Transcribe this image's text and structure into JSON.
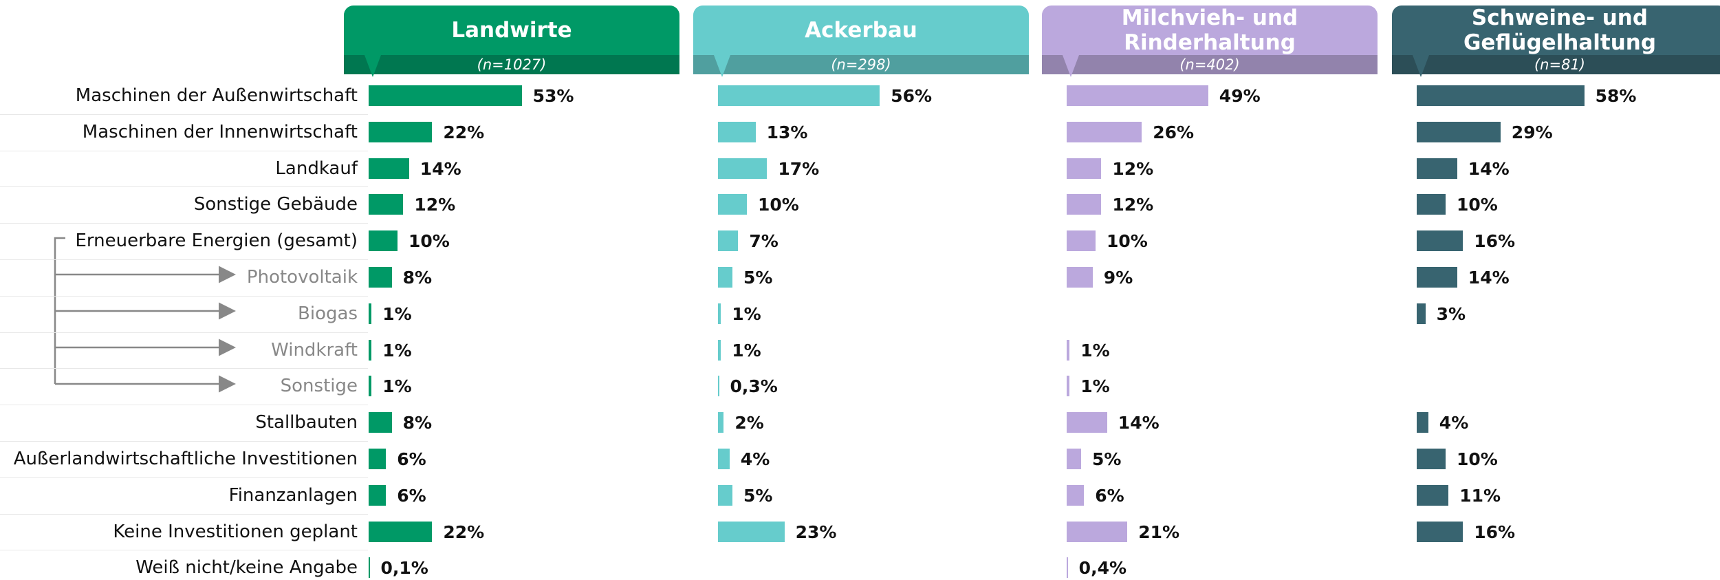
{
  "chart_data": {
    "type": "bar",
    "categories": [
      "Maschinen der Außenwirtschaft",
      "Maschinen der Innenwirtschaft",
      "Landkauf",
      "Sonstige Gebäude",
      "Erneuerbare Energien (gesamt)",
      "Photovoltaik",
      "Biogas",
      "Windkraft",
      "Sonstige",
      "Stallbauten",
      "Außerlandwirtschaftliche Investitionen",
      "Finanzanlagen",
      "Keine Investitionen geplant",
      "Weiß nicht/keine Angabe"
    ],
    "series": [
      {
        "name": "Landwirte",
        "subtitle": "(n=1027)",
        "color": "#009966",
        "values": [
          53,
          22,
          14,
          12,
          10,
          8,
          1,
          1,
          1,
          8,
          6,
          6,
          22,
          0.1
        ],
        "value_labels": [
          "53%",
          "22%",
          "14%",
          "12%",
          "10%",
          "8%",
          "1%",
          "1%",
          "1%",
          "8%",
          "6%",
          "6%",
          "22%",
          "0,1%"
        ]
      },
      {
        "name": "Ackerbau",
        "subtitle": "(n=298)",
        "color": "#66cccc",
        "values": [
          56,
          13,
          17,
          10,
          7,
          5,
          1,
          1,
          0.3,
          2,
          4,
          5,
          23,
          null
        ],
        "value_labels": [
          "56%",
          "13%",
          "17%",
          "10%",
          "7%",
          "5%",
          "1%",
          "1%",
          "0,3%",
          "2%",
          "4%",
          "5%",
          "23%",
          null
        ]
      },
      {
        "name": "Milchvieh- und Rinderhaltung",
        "subtitle": "(n=402)",
        "color": "#bba8dd",
        "values": [
          49,
          26,
          12,
          12,
          10,
          9,
          null,
          1,
          1,
          14,
          5,
          6,
          21,
          0.4
        ],
        "value_labels": [
          "49%",
          "26%",
          "12%",
          "12%",
          "10%",
          "9%",
          null,
          "1%",
          "1%",
          "14%",
          "5%",
          "6%",
          "21%",
          "0,4%"
        ]
      },
      {
        "name": "Schweine- und Geflügelhaltung",
        "subtitle": "(n=81)",
        "color": "#386470",
        "values": [
          58,
          29,
          14,
          10,
          16,
          14,
          3,
          null,
          null,
          4,
          10,
          11,
          16,
          null
        ],
        "value_labels": [
          "58%",
          "29%",
          "14%",
          "10%",
          "16%",
          "14%",
          "3%",
          null,
          null,
          "4%",
          "10%",
          "11%",
          "16%",
          null
        ]
      }
    ]
  }
}
